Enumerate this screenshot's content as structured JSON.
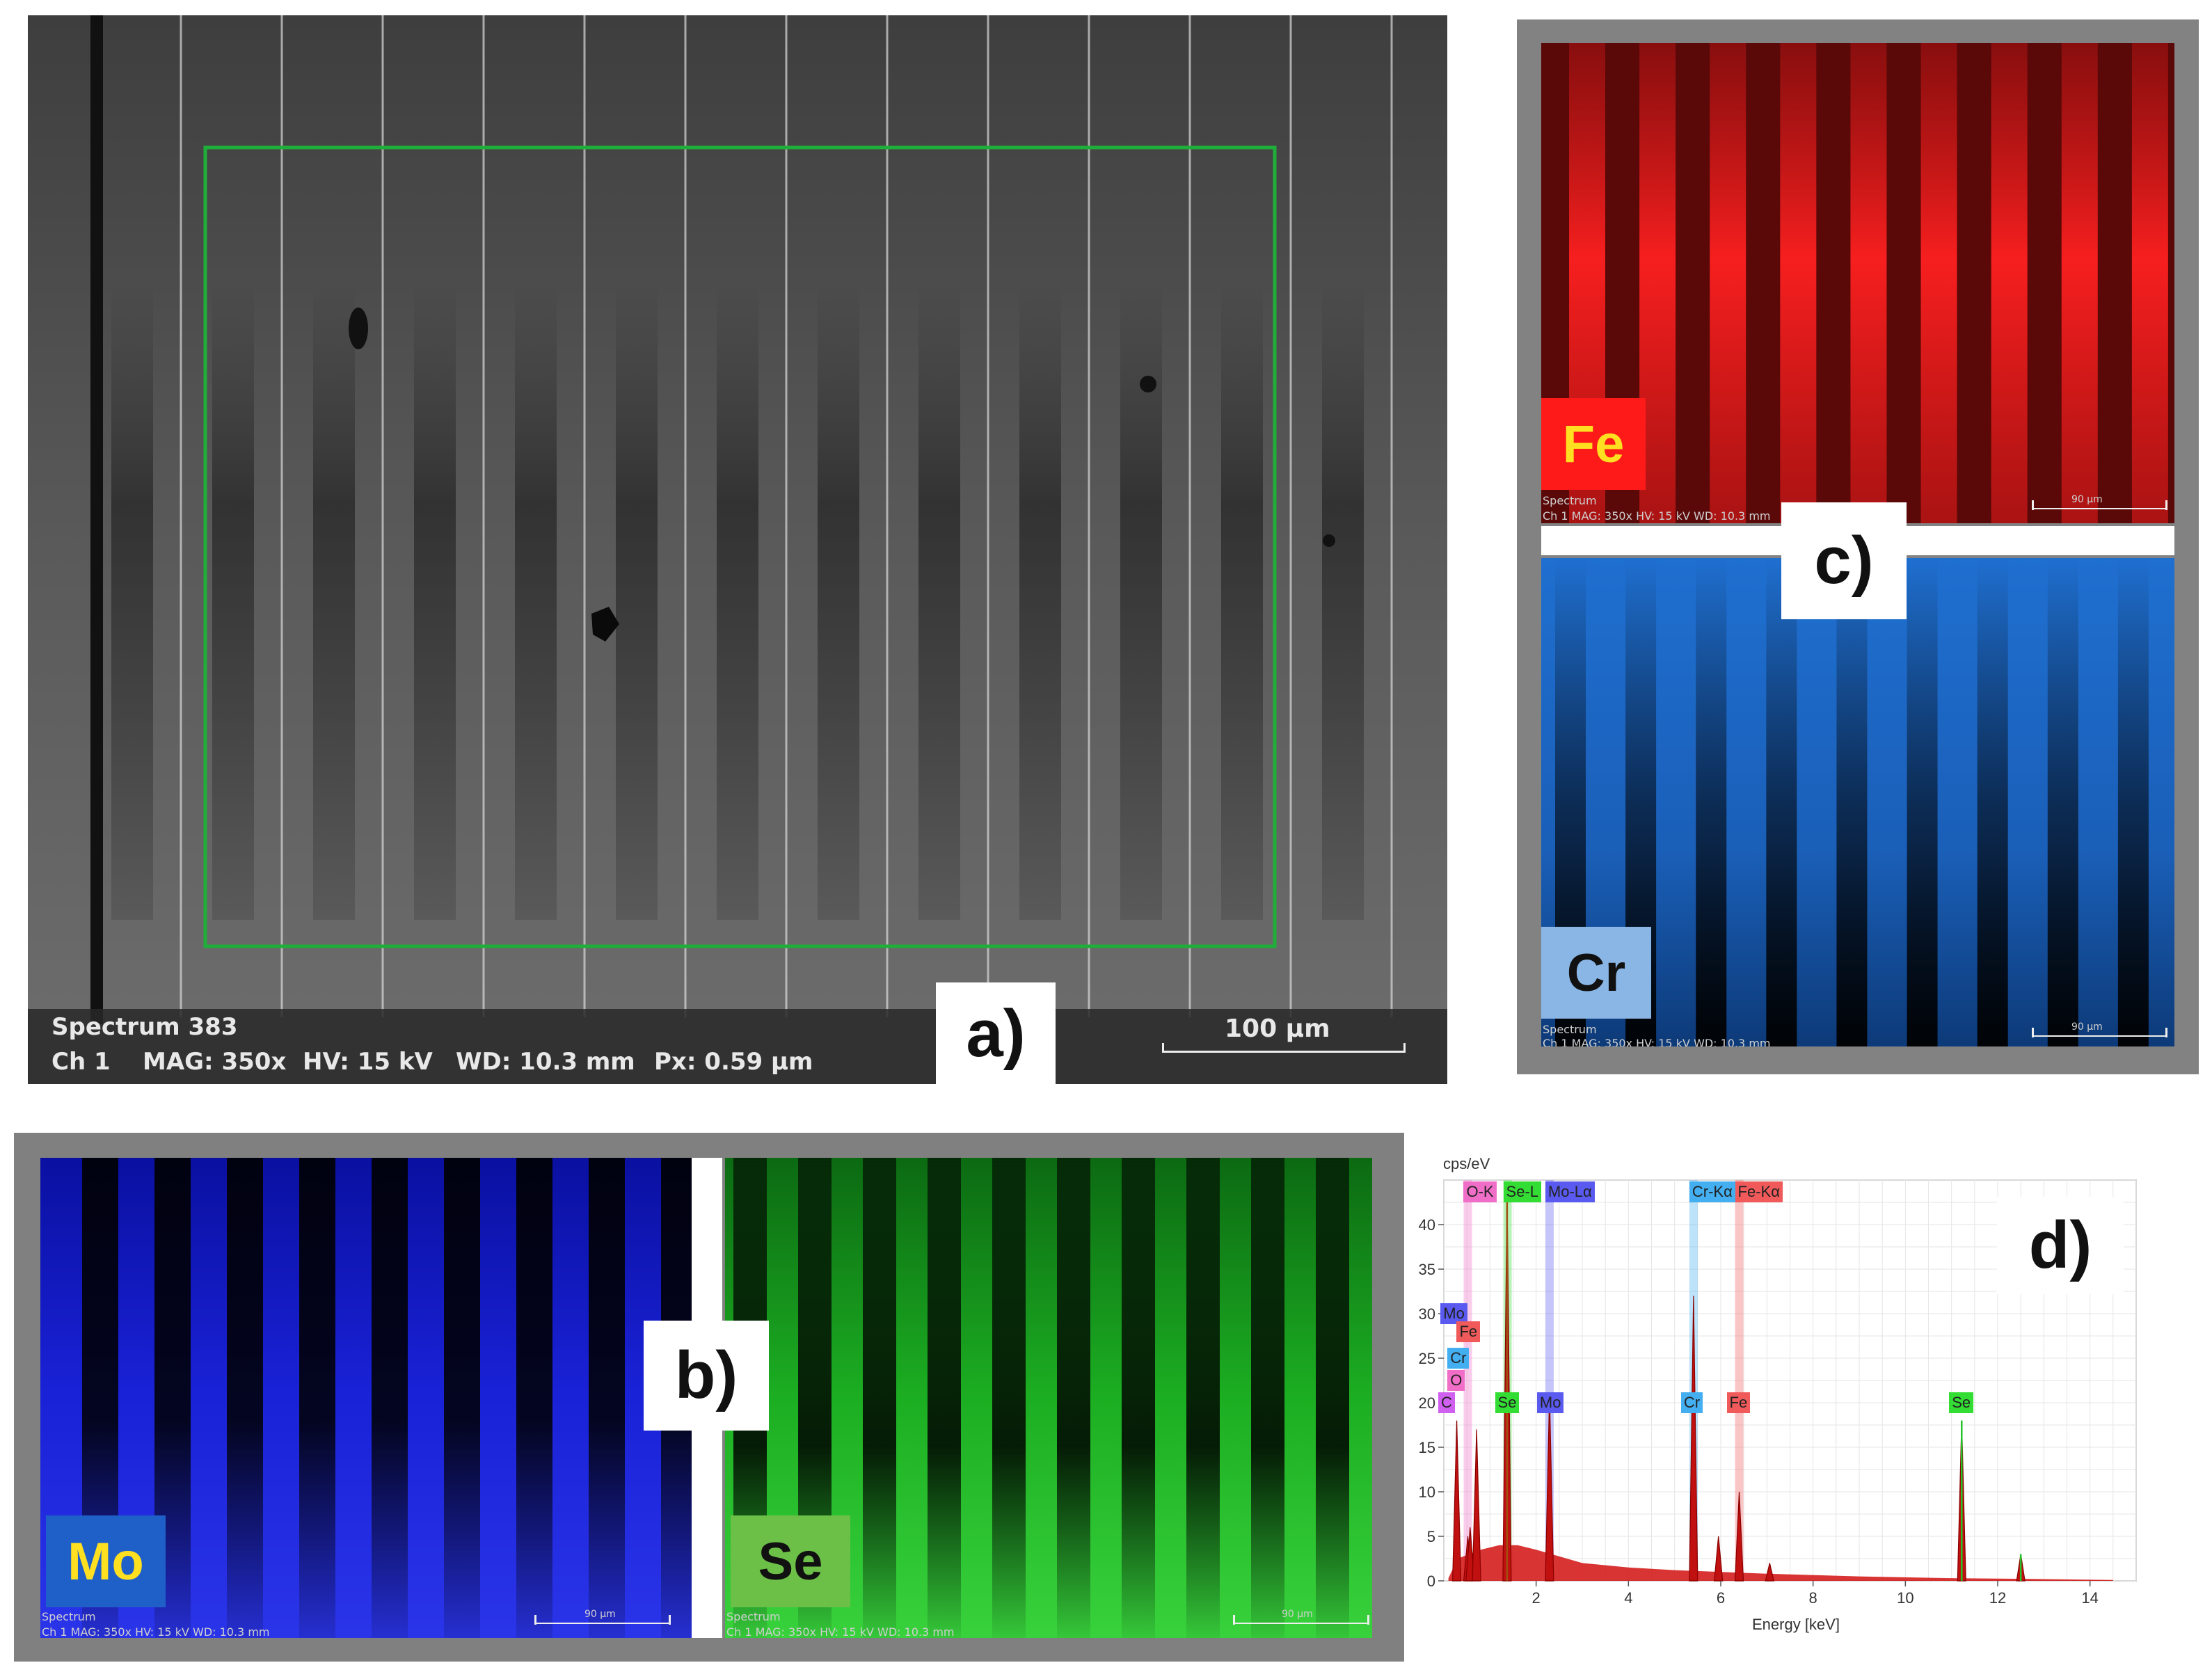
{
  "panel_a": {
    "label": "a)",
    "spectrum": "Spectrum 383",
    "channel": "Ch 1",
    "mag": "MAG: 350x",
    "hv": "HV: 15 kV",
    "wd": "WD: 10.3 mm",
    "px": "Px: 0.59 µm",
    "scale": "100 µm",
    "roi_color": "#1fae3a"
  },
  "panel_c": {
    "label": "c)",
    "fe": {
      "element": "Fe",
      "spectrum": "Spectrum",
      "info": "Ch 1   MAG: 350x   HV: 15 kV   WD: 10.3 mm",
      "scale": "90 µm",
      "color": "#d01010"
    },
    "cr": {
      "element": "Cr",
      "spectrum": "Spectrum",
      "info": "Ch 1   MAG: 350x   HV: 15 kV   WD: 10.3 mm",
      "scale": "90 µm",
      "color": "#1e6fc8"
    }
  },
  "panel_b": {
    "label": "b)",
    "mo": {
      "element": "Mo",
      "spectrum": "Spectrum",
      "info": "Ch 1   MAG: 350x   HV: 15 kV   WD: 10.3 mm",
      "scale": "90 µm",
      "color": "#1a22d8"
    },
    "se": {
      "element": "Se",
      "spectrum": "Spectrum",
      "info": "Ch 1   MAG: 350x   HV: 15 kV   WD: 10.3 mm",
      "scale": "90 µm",
      "color": "#22c42a"
    }
  },
  "panel_d": {
    "label": "d)",
    "chart_data": {
      "type": "line",
      "ylabel": "cps/eV",
      "xlabel": "Energy [keV]",
      "xlim": [
        0,
        15
      ],
      "ylim": [
        0,
        45
      ],
      "xticks": [
        2,
        4,
        6,
        8,
        10,
        12,
        14
      ],
      "yticks": [
        0,
        5,
        10,
        15,
        20,
        25,
        30,
        35,
        40
      ],
      "peaks": [
        {
          "x": 0.28,
          "y": 18
        },
        {
          "x": 0.52,
          "y": 5
        },
        {
          "x": 0.57,
          "y": 6
        },
        {
          "x": 0.71,
          "y": 17
        },
        {
          "x": 1.37,
          "y": 44
        },
        {
          "x": 2.29,
          "y": 21
        },
        {
          "x": 5.41,
          "y": 32
        },
        {
          "x": 5.95,
          "y": 5
        },
        {
          "x": 6.4,
          "y": 10
        },
        {
          "x": 7.06,
          "y": 2
        },
        {
          "x": 11.22,
          "y": 18
        },
        {
          "x": 12.5,
          "y": 3
        }
      ],
      "line_markers": [
        {
          "label": "O-K",
          "x": 0.52,
          "color": "#f06ec8"
        },
        {
          "label": "Se-L",
          "x": 1.38,
          "color": "#33dd33"
        },
        {
          "label": "Mo-Lα",
          "x": 2.29,
          "color": "#5a5af0"
        },
        {
          "label": "Cr-Kα",
          "x": 5.41,
          "color": "#43aef0"
        },
        {
          "label": "Fe-Kα",
          "x": 6.4,
          "color": "#f05a5a"
        }
      ],
      "peak_labels": [
        {
          "label": "Mo",
          "x": 0.2,
          "y": 30,
          "color": "#5a5af0"
        },
        {
          "label": "Fe",
          "x": 0.55,
          "y": 28,
          "color": "#f05a5a"
        },
        {
          "label": "Cr",
          "x": 0.35,
          "y": 25,
          "color": "#43aef0"
        },
        {
          "label": "O",
          "x": 0.35,
          "y": 22.5,
          "color": "#f06ec8"
        },
        {
          "label": "C",
          "x": 0.15,
          "y": 20,
          "color": "#d060f0"
        },
        {
          "label": "Se",
          "x": 1.38,
          "y": 20,
          "color": "#33dd33"
        },
        {
          "label": "Mo",
          "x": 2.29,
          "y": 20,
          "color": "#5a5af0"
        },
        {
          "label": "Cr",
          "x": 5.41,
          "y": 20,
          "color": "#43aef0"
        },
        {
          "label": "Fe",
          "x": 6.4,
          "y": 20,
          "color": "#f05a5a"
        },
        {
          "label": "Se",
          "x": 11.22,
          "y": 20,
          "color": "#33dd33"
        }
      ]
    }
  }
}
